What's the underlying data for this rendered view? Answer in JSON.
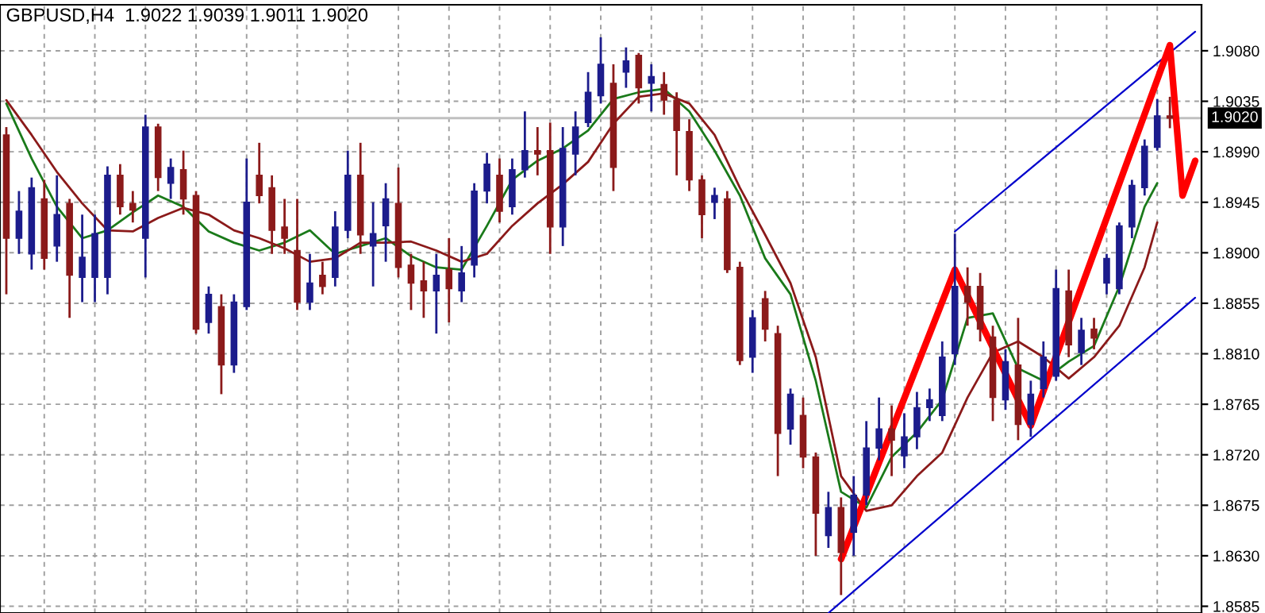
{
  "chart_data": {
    "type": "candlestick",
    "title": "GBPUSD,H4  1.9022 1.9039 1.9011 1.9020",
    "categories": [
      null,
      null,
      null,
      null,
      null,
      null,
      null,
      null,
      null,
      null,
      null,
      null,
      null,
      null,
      null,
      null,
      null,
      null,
      null,
      null,
      null,
      null,
      null,
      null,
      null,
      null,
      null,
      null,
      null,
      null,
      null,
      null,
      null,
      null,
      null,
      null,
      null,
      null,
      null,
      null,
      null,
      null,
      null,
      null,
      null,
      null,
      null,
      null,
      null,
      null,
      null,
      null,
      null,
      null,
      null,
      null,
      null,
      null,
      null,
      null,
      null,
      null,
      null,
      null,
      null,
      null,
      null,
      null,
      null,
      null,
      null,
      null,
      null,
      null,
      null,
      null,
      null,
      null,
      null,
      null,
      null,
      null,
      null,
      null,
      null,
      null,
      null,
      null,
      null,
      null,
      null,
      null,
      null,
      null,
      null
    ],
    "ohlc": [
      [
        1.9005,
        1.9012,
        1.8863,
        1.8913
      ],
      [
        1.8913,
        1.8955,
        1.8899,
        1.8937
      ],
      [
        1.8899,
        1.8967,
        1.8885,
        1.8958
      ],
      [
        1.8948,
        1.8965,
        1.8885,
        1.8895
      ],
      [
        1.8906,
        1.8969,
        1.8892,
        1.8934
      ],
      [
        1.8944,
        1.8948,
        1.8842,
        1.888
      ],
      [
        1.8878,
        1.8934,
        1.8856,
        1.8896
      ],
      [
        1.8878,
        1.8934,
        1.8856,
        1.8917
      ],
      [
        1.8878,
        1.8977,
        1.8863,
        1.8969
      ],
      [
        1.8969,
        1.8979,
        1.8934,
        1.8941
      ],
      [
        1.8944,
        1.8955,
        1.8927,
        1.8938
      ],
      [
        1.8913,
        1.9023,
        1.8878,
        1.9012
      ],
      [
        1.9012,
        1.9015,
        1.8955,
        1.8967
      ],
      [
        1.8962,
        1.8984,
        1.8948,
        1.8976
      ],
      [
        1.8974,
        1.8991,
        1.8934,
        1.8948
      ],
      [
        1.8951,
        1.8955,
        1.8828,
        1.8832
      ],
      [
        1.8838,
        1.887,
        1.8828,
        1.8863
      ],
      [
        1.8852,
        1.8863,
        1.8774,
        1.88
      ],
      [
        1.88,
        1.8863,
        1.8793,
        1.8856
      ],
      [
        1.8852,
        1.8984,
        1.8849,
        1.8945
      ],
      [
        1.8969,
        1.8998,
        1.8944,
        1.8951
      ],
      [
        1.8958,
        1.8969,
        1.8899,
        1.892
      ],
      [
        1.8923,
        1.8948,
        1.8899,
        1.8913
      ],
      [
        1.8902,
        1.8948,
        1.8849,
        1.8856
      ],
      [
        1.8856,
        1.8899,
        1.8849,
        1.8873
      ],
      [
        1.888,
        1.8892,
        1.8863,
        1.887
      ],
      [
        1.8878,
        1.8937,
        1.887,
        1.8923
      ],
      [
        1.892,
        1.8991,
        1.8913,
        1.8969
      ],
      [
        1.8969,
        1.8998,
        1.8899,
        1.8916
      ],
      [
        1.8906,
        1.8945,
        1.887,
        1.8917
      ],
      [
        1.8924,
        1.8962,
        1.8892,
        1.8948
      ],
      [
        1.8944,
        1.8976,
        1.8878,
        1.8887
      ],
      [
        1.8889,
        1.8899,
        1.8849,
        1.8873
      ],
      [
        1.8875,
        1.8892,
        1.8842,
        1.8866
      ],
      [
        1.8866,
        1.8899,
        1.8828,
        1.888
      ],
      [
        1.8885,
        1.8913,
        1.8838,
        1.8868
      ],
      [
        1.8866,
        1.8906,
        1.8856,
        1.8882
      ],
      [
        1.8889,
        1.8962,
        1.8878,
        1.8955
      ],
      [
        1.8955,
        1.8989,
        1.8944,
        1.8979
      ],
      [
        1.8969,
        1.8984,
        1.8927,
        1.8937
      ],
      [
        1.8941,
        1.8984,
        1.8934,
        1.8974
      ],
      [
        1.8974,
        1.9026,
        1.8967,
        1.8991
      ],
      [
        1.8991,
        1.9012,
        1.8969,
        1.8988
      ],
      [
        1.8991,
        1.9016,
        1.8899,
        1.8923
      ],
      [
        1.8923,
        1.9012,
        1.8906,
        1.8993
      ],
      [
        1.8988,
        1.9026,
        1.8969,
        1.9012
      ],
      [
        1.9016,
        1.9061,
        1.9012,
        1.9043
      ],
      [
        1.904,
        1.9092,
        1.9033,
        1.9068
      ],
      [
        1.9051,
        1.9068,
        1.8955,
        1.8976
      ],
      [
        1.9061,
        1.9083,
        1.9047,
        1.9071
      ],
      [
        1.9076,
        1.9078,
        1.9033,
        1.9047
      ],
      [
        1.9051,
        1.9068,
        1.9026,
        1.9057
      ],
      [
        1.905,
        1.9061,
        1.9023,
        1.9036
      ],
      [
        1.9036,
        1.9043,
        1.8969,
        1.9009
      ],
      [
        1.9008,
        1.9019,
        1.8955,
        1.8965
      ],
      [
        1.8965,
        1.8969,
        1.8913,
        1.8934
      ],
      [
        1.8945,
        1.8958,
        1.893,
        1.8951
      ],
      [
        1.8948,
        1.8955,
        1.8882,
        1.8885
      ],
      [
        1.8887,
        1.8892,
        1.88,
        1.8804
      ],
      [
        1.8807,
        1.8849,
        1.8793,
        1.8842
      ],
      [
        1.8859,
        1.8866,
        1.8821,
        1.8832
      ],
      [
        1.8828,
        1.8835,
        1.8701,
        1.8739
      ],
      [
        1.8743,
        1.8779,
        1.8729,
        1.8774
      ],
      [
        1.8755,
        1.8771,
        1.8708,
        1.8718
      ],
      [
        1.8718,
        1.8722,
        1.863,
        1.8668
      ],
      [
        1.8648,
        1.8687,
        1.8637,
        1.8673
      ],
      [
        1.8673,
        1.8682,
        1.8595,
        1.8633
      ],
      [
        1.8651,
        1.8701,
        1.863,
        1.8684
      ],
      [
        1.8684,
        1.875,
        1.8675,
        1.8726
      ],
      [
        1.8726,
        1.8771,
        1.8715,
        1.8743
      ],
      [
        1.8743,
        1.8764,
        1.8701,
        1.8733
      ],
      [
        1.8719,
        1.8757,
        1.8708,
        1.8736
      ],
      [
        1.8736,
        1.8776,
        1.8725,
        1.8762
      ],
      [
        1.8762,
        1.8779,
        1.875,
        1.8769
      ],
      [
        1.8755,
        1.8821,
        1.875,
        1.8807
      ],
      [
        1.881,
        1.8917,
        1.88,
        1.887
      ],
      [
        1.887,
        1.8887,
        1.8835,
        1.8856
      ],
      [
        1.887,
        1.8882,
        1.8821,
        1.8832
      ],
      [
        1.8825,
        1.8835,
        1.875,
        1.8771
      ],
      [
        1.8769,
        1.8814,
        1.876,
        1.8803
      ],
      [
        1.88,
        1.8842,
        1.8733,
        1.8747
      ],
      [
        1.8747,
        1.8786,
        1.8736,
        1.8774
      ],
      [
        1.8779,
        1.8821,
        1.8771,
        1.8807
      ],
      [
        1.879,
        1.8885,
        1.8786,
        1.8868
      ],
      [
        1.8866,
        1.8885,
        1.8807,
        1.8818
      ],
      [
        1.8811,
        1.8842,
        1.88,
        1.8831
      ],
      [
        1.8832,
        1.8842,
        1.8814,
        1.8824
      ],
      [
        1.8873,
        1.8899,
        1.8863,
        1.8895
      ],
      [
        1.8868,
        1.8927,
        1.8863,
        1.8924
      ],
      [
        1.8923,
        1.8965,
        1.8913,
        1.896
      ],
      [
        1.8958,
        1.9001,
        1.8951,
        1.8995
      ],
      [
        1.8994,
        1.9037,
        1.8991,
        1.9022
      ],
      [
        1.9022,
        1.9039,
        1.9011,
        1.902
      ],
      null,
      null
    ],
    "colors": [
      "#8b1a1a",
      "#1c1c8c",
      "#1c1c8c",
      "#8b1a1a",
      "#1c1c8c",
      "#8b1a1a",
      "#1c1c8c",
      "#1c1c8c",
      "#1c1c8c",
      "#8b1a1a",
      "#8b1a1a",
      "#1c1c8c",
      "#8b1a1a",
      "#1c1c8c",
      "#8b1a1a",
      "#8b1a1a",
      "#1c1c8c",
      "#8b1a1a",
      "#1c1c8c",
      "#1c1c8c",
      "#8b1a1a",
      "#8b1a1a",
      "#8b1a1a",
      "#8b1a1a",
      "#1c1c8c",
      "#8b1a1a",
      "#1c1c8c",
      "#1c1c8c",
      "#8b1a1a",
      "#1c1c8c",
      "#1c1c8c",
      "#8b1a1a",
      "#8b1a1a",
      "#8b1a1a",
      "#1c1c8c",
      "#8b1a1a",
      "#1c1c8c",
      "#1c1c8c",
      "#1c1c8c",
      "#8b1a1a",
      "#1c1c8c",
      "#1c1c8c",
      "#8b1a1a",
      "#8b1a1a",
      "#1c1c8c",
      "#1c1c8c",
      "#1c1c8c",
      "#1c1c8c",
      "#8b1a1a",
      "#1c1c8c",
      "#8b1a1a",
      "#1c1c8c",
      "#8b1a1a",
      "#8b1a1a",
      "#8b1a1a",
      "#8b1a1a",
      "#1c1c8c",
      "#8b1a1a",
      "#8b1a1a",
      "#1c1c8c",
      "#8b1a1a",
      "#8b1a1a",
      "#1c1c8c",
      "#8b1a1a",
      "#8b1a1a",
      "#1c1c8c",
      "#8b1a1a",
      "#1c1c8c",
      "#1c1c8c",
      "#1c1c8c",
      "#8b1a1a",
      "#1c1c8c",
      "#1c1c8c",
      "#1c1c8c",
      "#1c1c8c",
      "#1c1c8c",
      "#8b1a1a",
      "#8b1a1a",
      "#8b1a1a",
      "#1c1c8c",
      "#8b1a1a",
      "#1c1c8c",
      "#1c1c8c",
      "#1c1c8c",
      "#8b1a1a",
      "#1c1c8c",
      "#8b1a1a",
      "#1c1c8c",
      "#1c1c8c",
      "#1c1c8c",
      "#1c1c8c",
      "#1c1c8c",
      "#8b1a1a",
      null,
      null
    ],
    "series": [
      {
        "type": "line",
        "color": "#1a7a1a",
        "values": [
          1.9033,
          null,
          1.8984,
          null,
          1.8941,
          null,
          1.8913,
          null,
          1.892,
          null,
          1.8936,
          null,
          1.8951,
          null,
          1.8941,
          null,
          1.8919,
          null,
          1.8909,
          null,
          1.8902,
          null,
          1.8909,
          null,
          1.892,
          null,
          1.8899,
          null,
          1.8906,
          null,
          1.8913,
          null,
          1.8897,
          null,
          1.8887,
          null,
          1.8885,
          null,
          1.8924,
          null,
          1.8965,
          null,
          1.8982,
          null,
          1.8993,
          null,
          1.9009,
          null,
          1.9037,
          null,
          1.9043,
          null,
          1.9046,
          null,
          1.9026,
          null,
          1.8991,
          null,
          1.8951,
          null,
          1.8895,
          null,
          1.8863,
          null,
          1.8786,
          null,
          1.8687,
          null,
          1.8673,
          null,
          1.8718,
          null,
          1.874,
          null,
          1.8769,
          null,
          1.8842,
          null,
          1.8846,
          null,
          1.8797,
          null,
          1.8786,
          null,
          1.8803,
          null,
          1.8817,
          null,
          1.887,
          null,
          1.8941,
          1.8962,
          null,
          null,
          null
        ]
      },
      {
        "type": "line",
        "color": "#8b1a1a",
        "values": [
          1.9036,
          null,
          1.9005,
          null,
          1.8972,
          null,
          1.8944,
          null,
          1.892,
          null,
          1.8919,
          null,
          1.8931,
          null,
          1.894,
          null,
          1.8934,
          null,
          1.892,
          null,
          1.8913,
          null,
          1.8904,
          null,
          1.8892,
          null,
          1.8895,
          null,
          1.8909,
          null,
          1.8909,
          null,
          1.891,
          null,
          1.8902,
          null,
          1.8892,
          null,
          1.8899,
          null,
          1.8924,
          null,
          1.8944,
          null,
          1.8961,
          null,
          1.8981,
          null,
          1.9015,
          null,
          1.9039,
          null,
          1.9042,
          null,
          1.9033,
          null,
          1.9005,
          null,
          1.8958,
          null,
          1.8916,
          null,
          1.8873,
          null,
          1.8807,
          null,
          1.8701,
          null,
          1.867,
          null,
          1.8675,
          null,
          1.8701,
          null,
          1.8722,
          null,
          1.8771,
          null,
          1.8811,
          null,
          1.8821,
          null,
          1.8807,
          null,
          1.8788,
          null,
          1.8807,
          null,
          1.8835,
          null,
          1.8887,
          1.8927,
          null,
          null,
          null
        ]
      },
      {
        "type": "line",
        "color": "#0000cc",
        "values": [
          null,
          null,
          null,
          null,
          null,
          null,
          null,
          null,
          null,
          null,
          null,
          null,
          null,
          null,
          null,
          null,
          null,
          null,
          null,
          null,
          null,
          null,
          null,
          null,
          null,
          null,
          null,
          null,
          null,
          null,
          null,
          null,
          null,
          null,
          null,
          null,
          null,
          null,
          null,
          null,
          null,
          null,
          null,
          null,
          null,
          null,
          null,
          null,
          null,
          null,
          null,
          null,
          null,
          null,
          null,
          null,
          null,
          null,
          null,
          null,
          null,
          null,
          null,
          null,
          null,
          null,
          null,
          null,
          null,
          null,
          null,
          null,
          null,
          null,
          null,
          1.8919,
          null,
          null,
          null,
          null,
          null,
          null,
          null,
          null,
          null,
          null,
          null,
          null,
          null,
          null,
          null,
          null,
          null,
          null,
          1.9097
        ]
      },
      {
        "type": "line",
        "color": "#0000cc",
        "values": [
          null,
          null,
          null,
          null,
          null,
          null,
          null,
          null,
          null,
          null,
          null,
          null,
          null,
          null,
          null,
          null,
          null,
          null,
          null,
          null,
          null,
          null,
          null,
          null,
          null,
          null,
          null,
          null,
          null,
          null,
          null,
          null,
          null,
          null,
          null,
          null,
          null,
          null,
          null,
          null,
          null,
          null,
          null,
          null,
          null,
          null,
          null,
          null,
          null,
          null,
          null,
          null,
          null,
          null,
          null,
          null,
          null,
          null,
          null,
          null,
          null,
          null,
          null,
          null,
          null,
          1.8579,
          null,
          null,
          null,
          null,
          null,
          null,
          null,
          null,
          null,
          null,
          null,
          null,
          null,
          null,
          null,
          null,
          null,
          null,
          null,
          null,
          null,
          null,
          null,
          null,
          null,
          null,
          null,
          null,
          1.886
        ]
      },
      {
        "type": "line",
        "color": "#ff0000",
        "values": [
          null,
          null,
          null,
          null,
          null,
          null,
          null,
          null,
          null,
          null,
          null,
          null,
          null,
          null,
          null,
          null,
          null,
          null,
          null,
          null,
          null,
          null,
          null,
          null,
          null,
          null,
          null,
          null,
          null,
          null,
          null,
          null,
          null,
          null,
          null,
          null,
          null,
          null,
          null,
          null,
          null,
          null,
          null,
          null,
          null,
          null,
          null,
          null,
          null,
          null,
          null,
          null,
          null,
          null,
          null,
          null,
          null,
          null,
          null,
          null,
          null,
          null,
          null,
          null,
          null,
          null,
          1.8627,
          null,
          null,
          null,
          null,
          null,
          null,
          null,
          null,
          1.8885,
          null,
          null,
          null,
          null,
          null,
          1.8746,
          null,
          null,
          null,
          null,
          null,
          null,
          null,
          null,
          null,
          null,
          1.9085,
          1.8951,
          1.8982
        ]
      }
    ],
    "ylim": [
      1.8579,
      1.9121
    ],
    "yticks": [
      1.8585,
      {
        "value": 1.863,
        "label": "1.8630"
      },
      1.8675,
      {
        "value": 1.872,
        "label": "1.8720"
      },
      1.8765,
      {
        "value": 1.881,
        "label": "1.8810"
      },
      1.8855,
      {
        "value": 1.89,
        "label": "1.8900"
      },
      1.8945,
      {
        "value": 1.899,
        "label": "1.8990"
      },
      1.9035,
      {
        "value": 1.908,
        "label": "1.9080"
      }
    ],
    "ref_lines": [
      {
        "axis": "y",
        "value": 1.902,
        "label": "1.9020",
        "color": "#c0c0c0"
      }
    ],
    "grid": true,
    "tick_labels": "y"
  }
}
